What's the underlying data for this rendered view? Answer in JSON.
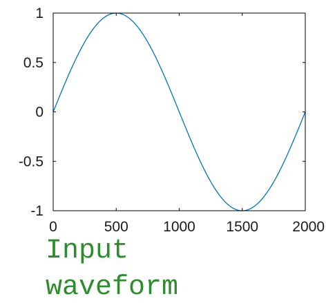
{
  "chart_data": {
    "type": "line",
    "title": "",
    "xlabel": "",
    "ylabel": "",
    "xlim": [
      0,
      2000
    ],
    "ylim": [
      -1,
      1
    ],
    "xticks": [
      0,
      500,
      1000,
      1500,
      2000
    ],
    "yticks": [
      -1,
      -0.5,
      0,
      0.5,
      1
    ],
    "xtick_labels": [
      "0",
      "500",
      "1000",
      "1500",
      "2000"
    ],
    "ytick_labels": [
      "-1",
      "-0.5",
      "0",
      "0.5",
      "1"
    ],
    "grid": false,
    "series": [
      {
        "color": "#0072bd",
        "function": "sin(2*pi*x/2000)",
        "x_start": 0,
        "x_end": 2000
      }
    ]
  },
  "caption": {
    "line1": "Input",
    "line2": "waveform"
  },
  "colors": {
    "caption": "#2e8b2e",
    "axes": "#000000",
    "line": "#0072bd"
  }
}
